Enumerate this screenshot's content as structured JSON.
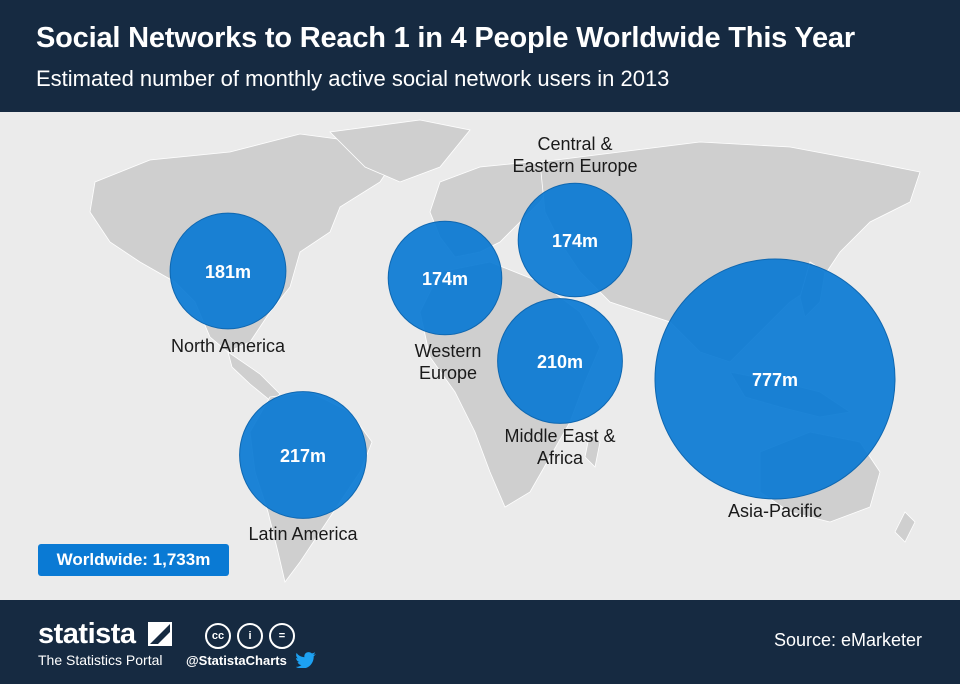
{
  "header": {
    "title": "Social Networks to Reach 1 in 4 People Worldwide This Year",
    "subtitle": "Estimated number of monthly active social network users in 2013"
  },
  "chart_data": {
    "type": "bubble-map",
    "title": "Social Networks to Reach 1 in 4 People Worldwide This Year",
    "subtitle": "Estimated number of monthly active social network users in 2013",
    "unit": "m",
    "regions": [
      {
        "name": "North America",
        "value": 181,
        "label": "181m"
      },
      {
        "name": "Latin America",
        "value": 217,
        "label": "217m"
      },
      {
        "name": "Western Europe",
        "value": 174,
        "label": "174m"
      },
      {
        "name": "Central & Eastern Europe",
        "value": 174,
        "label": "174m"
      },
      {
        "name": "Middle East & Africa",
        "value": 210,
        "label": "210m"
      },
      {
        "name": "Asia-Pacific",
        "value": 777,
        "label": "777m"
      }
    ],
    "total_label": "Worldwide: 1,733m",
    "colors": {
      "bubble": "#0a7ad4",
      "bubble_border": "#0f67b0",
      "land": "#cfcfcf",
      "header": "#162a41"
    }
  },
  "footer": {
    "brand": "statista",
    "tagline": "The Statistics Portal",
    "handle": "@StatistaCharts",
    "source": "Source: eMarketer",
    "license_icons": [
      "cc",
      "i",
      "="
    ]
  }
}
